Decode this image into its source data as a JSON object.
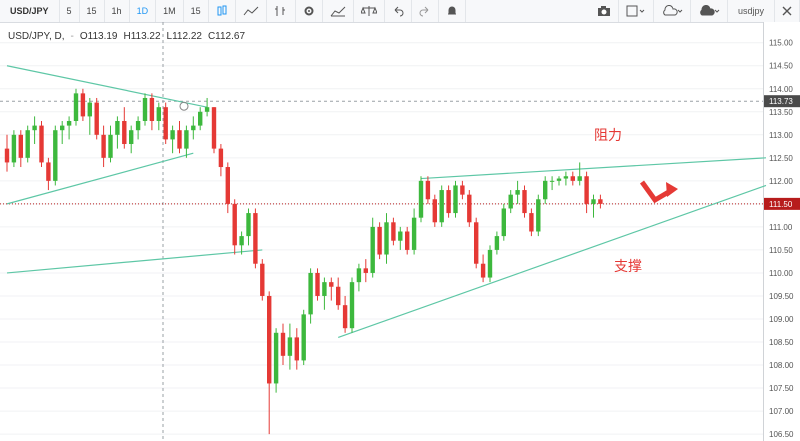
{
  "toolbar": {
    "symbol": "USD/JPY",
    "intervals": [
      "5",
      "15",
      "1h",
      "1D",
      "1M",
      "15"
    ],
    "active_interval": "1D",
    "icons": [
      "compare-icon",
      "indicators-icon",
      "bar-style-icon",
      "settings-icon",
      "templates-icon",
      "alerts-scale-icon",
      "undo-icon",
      "redo-icon",
      "alert-bell-icon"
    ],
    "right_icons": [
      "camera-icon",
      "layout-icon",
      "cloud-load-icon",
      "cloud-save-icon"
    ],
    "right_symbol": "usdjpy",
    "close_icon": "close-icon"
  },
  "legend": {
    "title": "USD/JPY, D,",
    "open": "O113.19",
    "high": "H113.22",
    "low": "L112.22",
    "close": "C112.67"
  },
  "annotations": {
    "resistance": "阻力",
    "support": "支撑"
  },
  "colors": {
    "up": "#26a69a",
    "up_fill": "#3db83d",
    "down": "#e53935",
    "trendline": "#5ec7a6",
    "price_line": "#b71c1c",
    "arrow": "#e53935"
  },
  "chart_data": {
    "type": "candlestick",
    "symbol": "USD/JPY",
    "timeframe": "D",
    "ylim": [
      106.35,
      115.45
    ],
    "y_ticks": [
      115.0,
      114.5,
      114.0,
      113.5,
      113.0,
      112.5,
      112.0,
      111.5,
      111.0,
      110.5,
      110.0,
      109.5,
      109.0,
      108.5,
      108.0,
      107.5,
      107.0,
      106.5
    ],
    "y_tick_labels": [
      "115.00",
      "114.50",
      "114.00",
      "113.50",
      "113.00",
      "112.50",
      "112.00",
      "111.50",
      "111.00",
      "110.50",
      "110.00",
      "109.50",
      "109.00",
      "108.50",
      "108.00",
      "107.50",
      "107.00",
      "106.50"
    ],
    "price_labels": [
      {
        "label": "113.73",
        "value": 113.73,
        "style": "crosshair"
      },
      {
        "label": "111.50",
        "value": 111.5,
        "style": "last"
      }
    ],
    "candles": [
      [
        112.7,
        113.0,
        112.2,
        112.4
      ],
      [
        112.4,
        113.1,
        112.3,
        113.0
      ],
      [
        113.0,
        113.1,
        112.3,
        112.5
      ],
      [
        112.5,
        113.2,
        112.4,
        113.1
      ],
      [
        113.1,
        113.4,
        112.8,
        113.2
      ],
      [
        113.2,
        113.3,
        112.3,
        112.4
      ],
      [
        112.4,
        112.5,
        111.8,
        112.0
      ],
      [
        112.0,
        113.2,
        111.9,
        113.1
      ],
      [
        113.1,
        113.3,
        112.8,
        113.2
      ],
      [
        113.2,
        113.4,
        112.9,
        113.3
      ],
      [
        113.3,
        114.0,
        113.2,
        113.9
      ],
      [
        113.9,
        114.0,
        113.3,
        113.4
      ],
      [
        113.4,
        113.8,
        113.0,
        113.7
      ],
      [
        113.7,
        113.8,
        112.9,
        113.0
      ],
      [
        113.0,
        113.2,
        112.3,
        112.5
      ],
      [
        112.5,
        113.2,
        112.4,
        113.0
      ],
      [
        113.0,
        113.4,
        112.7,
        113.3
      ],
      [
        113.3,
        113.6,
        112.7,
        112.8
      ],
      [
        112.8,
        113.2,
        112.6,
        113.1
      ],
      [
        113.1,
        113.4,
        112.9,
        113.3
      ],
      [
        113.3,
        113.9,
        113.2,
        113.8
      ],
      [
        113.8,
        113.9,
        113.1,
        113.3
      ],
      [
        113.3,
        113.7,
        113.1,
        113.6
      ],
      [
        113.6,
        113.7,
        112.8,
        112.9
      ],
      [
        112.9,
        113.2,
        112.6,
        113.1
      ],
      [
        113.1,
        113.3,
        112.6,
        112.7
      ],
      [
        112.7,
        113.2,
        112.5,
        113.1
      ],
      [
        113.1,
        113.4,
        112.9,
        113.2
      ],
      [
        113.2,
        113.6,
        113.1,
        113.5
      ],
      [
        113.5,
        113.8,
        113.4,
        113.6
      ],
      [
        113.6,
        113.6,
        112.6,
        112.7
      ],
      [
        112.7,
        112.8,
        112.1,
        112.3
      ],
      [
        112.3,
        112.4,
        111.3,
        111.5
      ],
      [
        111.5,
        111.6,
        110.4,
        110.6
      ],
      [
        110.6,
        110.9,
        110.4,
        110.8
      ],
      [
        110.8,
        111.4,
        110.6,
        111.3
      ],
      [
        111.3,
        111.4,
        110.1,
        110.2
      ],
      [
        110.2,
        110.3,
        109.4,
        109.5
      ],
      [
        109.5,
        109.6,
        106.5,
        107.6
      ],
      [
        107.6,
        108.8,
        107.4,
        108.7
      ],
      [
        108.7,
        108.9,
        108.0,
        108.2
      ],
      [
        108.2,
        108.9,
        107.9,
        108.6
      ],
      [
        108.6,
        108.8,
        107.9,
        108.1
      ],
      [
        108.1,
        109.2,
        108.0,
        109.1
      ],
      [
        109.1,
        110.1,
        108.9,
        110.0
      ],
      [
        110.0,
        110.1,
        109.4,
        109.5
      ],
      [
        109.5,
        109.9,
        109.2,
        109.8
      ],
      [
        109.8,
        109.9,
        109.4,
        109.7
      ],
      [
        109.7,
        109.9,
        109.2,
        109.3
      ],
      [
        109.3,
        109.5,
        108.7,
        108.8
      ],
      [
        108.8,
        109.9,
        108.7,
        109.8
      ],
      [
        109.8,
        110.2,
        109.6,
        110.1
      ],
      [
        110.1,
        110.3,
        109.8,
        110.0
      ],
      [
        110.0,
        111.2,
        109.9,
        111.0
      ],
      [
        111.0,
        111.1,
        110.3,
        110.4
      ],
      [
        110.4,
        111.3,
        110.2,
        111.1
      ],
      [
        111.1,
        111.2,
        110.6,
        110.7
      ],
      [
        110.7,
        111.0,
        110.5,
        110.9
      ],
      [
        110.9,
        111.0,
        110.4,
        110.5
      ],
      [
        110.5,
        111.4,
        110.4,
        111.2
      ],
      [
        111.2,
        112.1,
        111.1,
        112.0
      ],
      [
        112.0,
        112.1,
        111.5,
        111.6
      ],
      [
        111.6,
        111.7,
        111.0,
        111.1
      ],
      [
        111.1,
        111.9,
        111.0,
        111.8
      ],
      [
        111.8,
        111.9,
        111.2,
        111.3
      ],
      [
        111.3,
        112.0,
        111.2,
        111.9
      ],
      [
        111.9,
        112.0,
        111.6,
        111.7
      ],
      [
        111.7,
        111.8,
        111.0,
        111.1
      ],
      [
        111.1,
        111.2,
        110.1,
        110.2
      ],
      [
        110.2,
        110.4,
        109.8,
        109.9
      ],
      [
        109.9,
        110.6,
        109.8,
        110.5
      ],
      [
        110.5,
        110.9,
        110.4,
        110.8
      ],
      [
        110.8,
        111.5,
        110.7,
        111.4
      ],
      [
        111.4,
        111.8,
        111.3,
        111.7
      ],
      [
        111.7,
        112.0,
        111.5,
        111.8
      ],
      [
        111.8,
        111.9,
        111.2,
        111.3
      ],
      [
        111.3,
        111.4,
        110.8,
        110.9
      ],
      [
        110.9,
        111.7,
        110.8,
        111.6
      ],
      [
        111.6,
        112.1,
        111.5,
        112.0
      ],
      [
        112.0,
        112.1,
        111.8,
        112.0
      ],
      [
        112.0,
        112.1,
        111.9,
        112.05
      ],
      [
        112.05,
        112.2,
        111.9,
        112.1
      ],
      [
        112.1,
        112.2,
        111.9,
        112.0
      ],
      [
        112.0,
        112.4,
        111.9,
        112.1
      ],
      [
        112.1,
        112.2,
        111.3,
        111.5
      ],
      [
        111.5,
        111.7,
        111.2,
        111.6
      ],
      [
        111.6,
        111.7,
        111.4,
        111.5
      ]
    ],
    "trendlines": [
      {
        "name": "upper-left-resistance",
        "from": [
          0,
          114.5
        ],
        "to": [
          29,
          113.6
        ]
      },
      {
        "name": "lower-left-support",
        "from": [
          0,
          111.5
        ],
        "to": [
          27,
          112.6
        ]
      },
      {
        "name": "long-horizontal-support",
        "from": [
          0,
          110.0
        ],
        "to": [
          37,
          110.5
        ]
      },
      {
        "name": "right-resistance",
        "from": [
          60,
          112.05
        ],
        "to": [
          110,
          112.5
        ]
      },
      {
        "name": "right-support",
        "from": [
          48,
          108.6
        ],
        "to": [
          110,
          111.9
        ]
      }
    ]
  }
}
